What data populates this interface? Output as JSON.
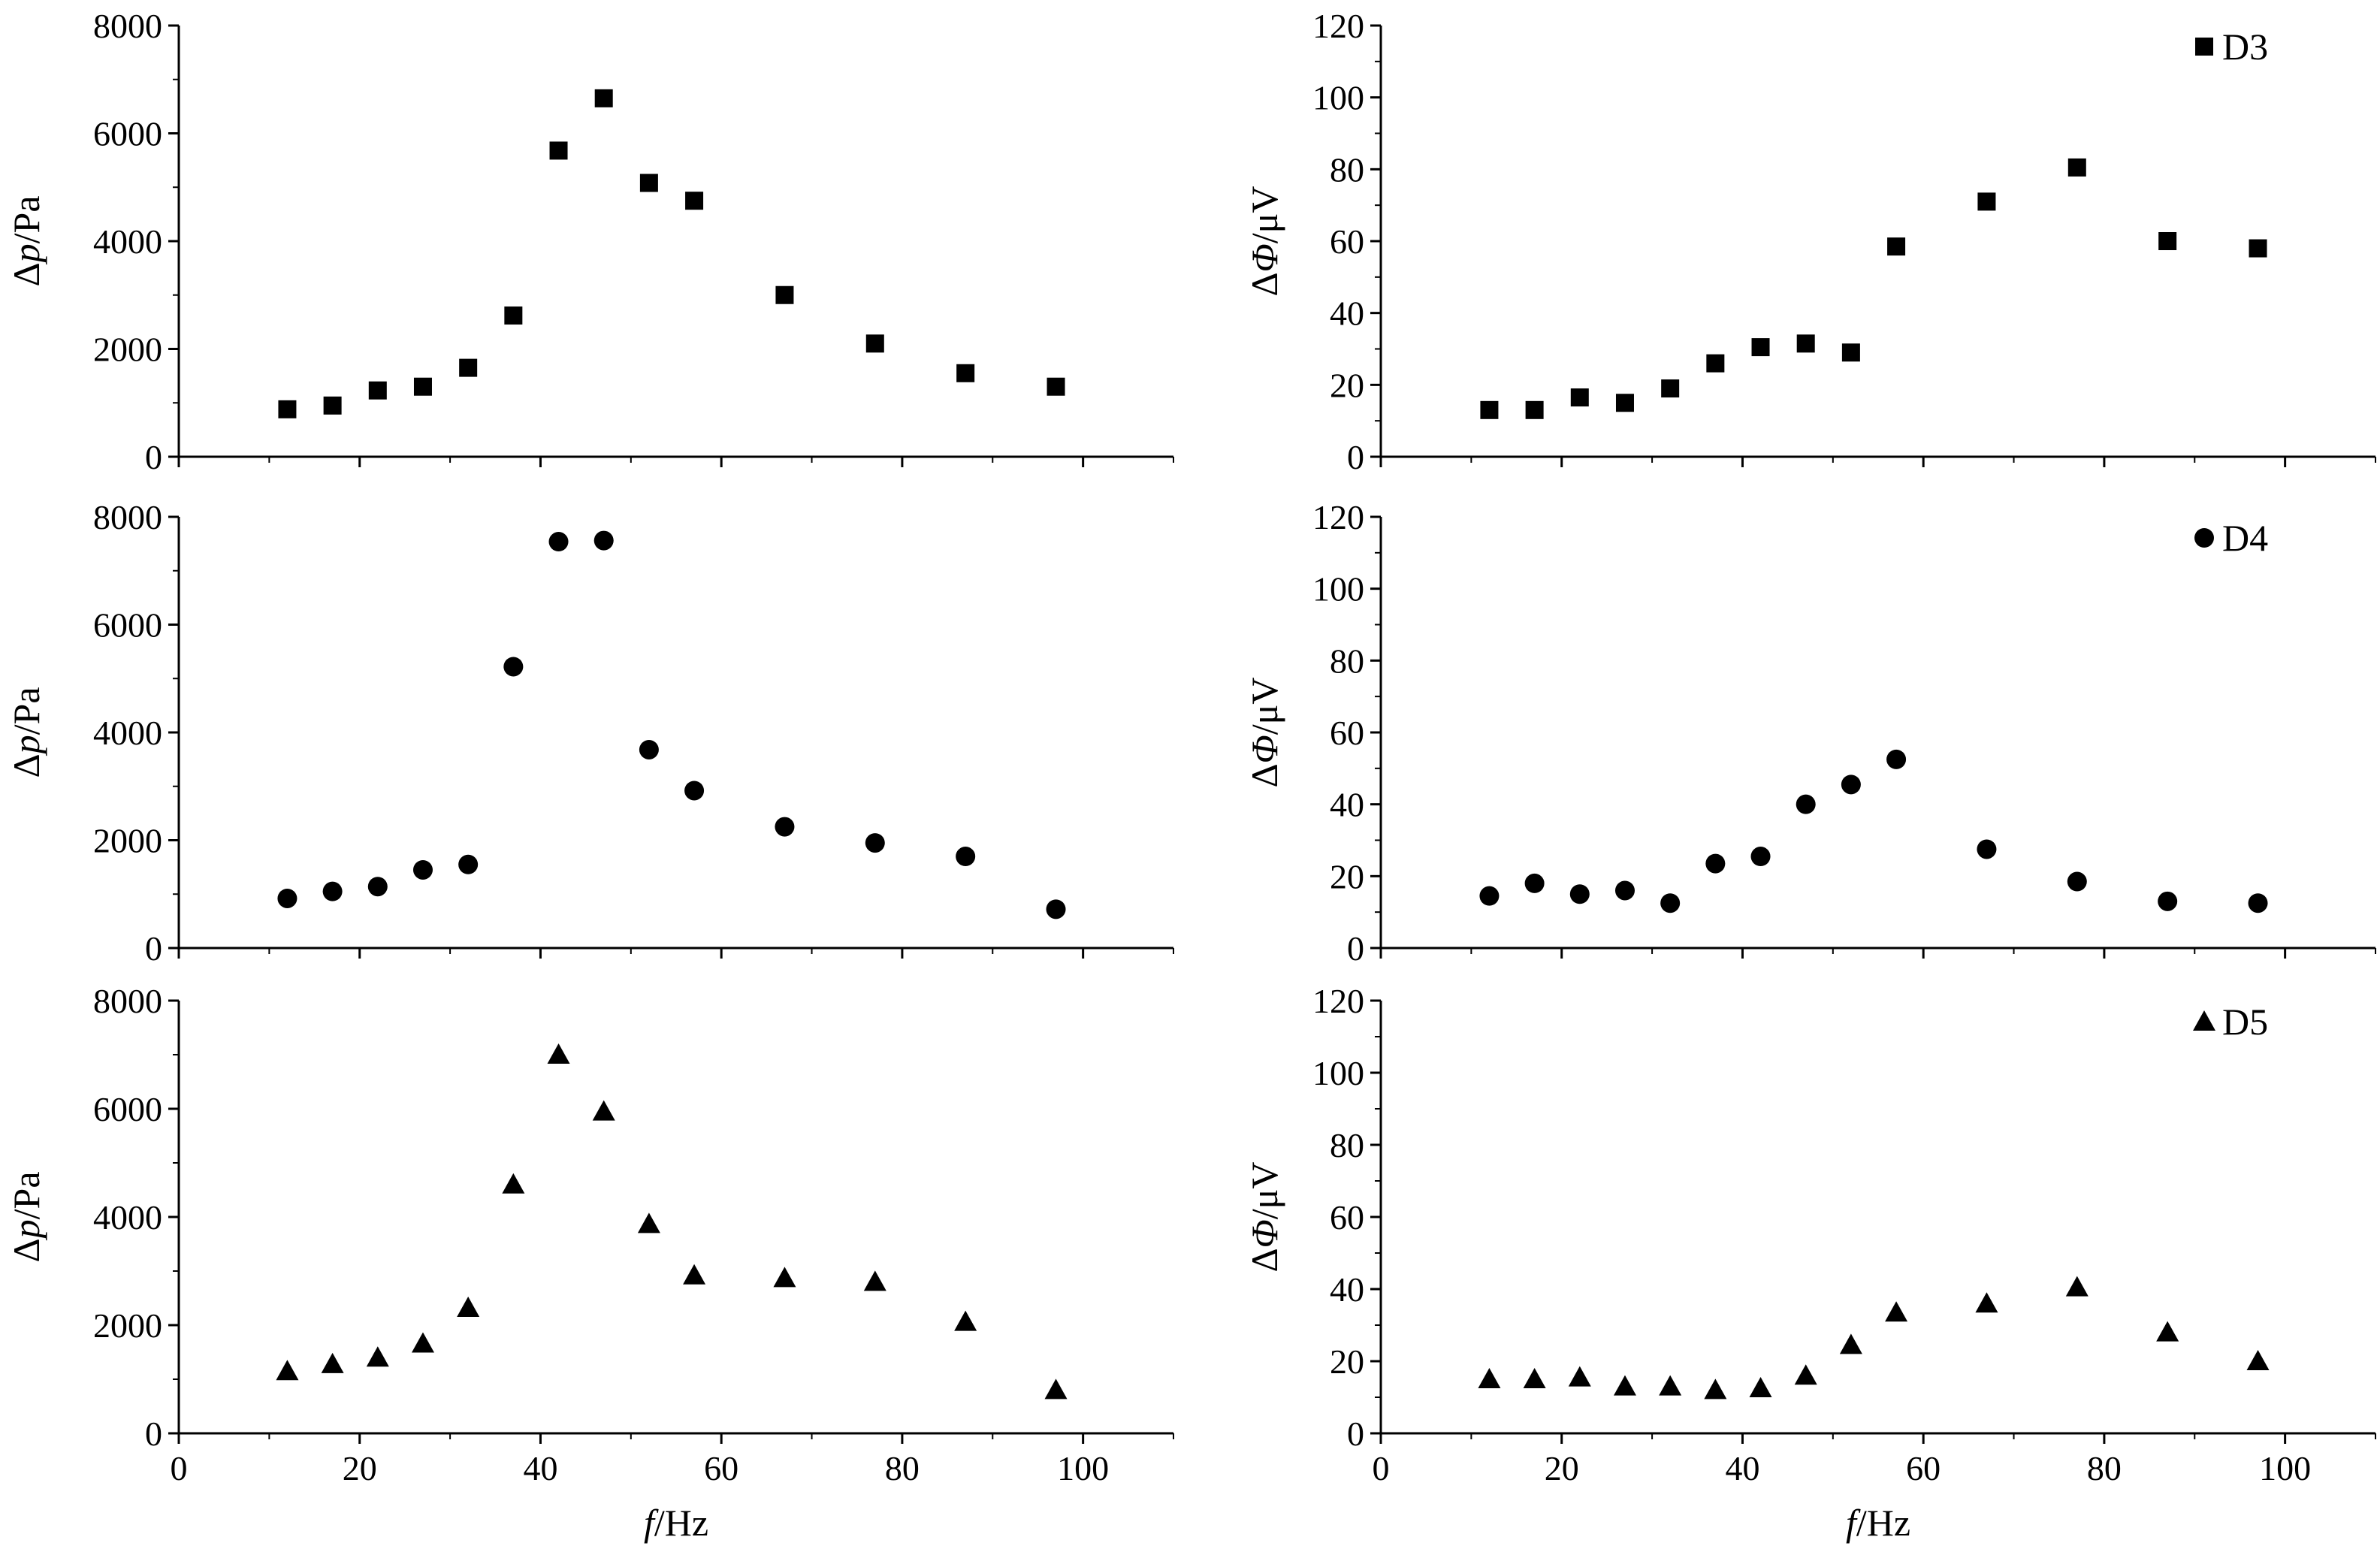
{
  "figure": {
    "xlabel_italic": "f",
    "xlabel_unit": "/Hz",
    "left_ylabel_prefix": "Δ",
    "left_ylabel_italic": "p",
    "left_ylabel_unit": "/Pa",
    "right_ylabel_prefix": "Δ",
    "right_ylabel_italic": "Φ",
    "right_ylabel_unit": "/μV"
  },
  "chart_data": [
    {
      "id": "pressure-D3",
      "type": "scatter",
      "marker": "square",
      "xlabel": "f/Hz",
      "ylabel": "Δp/Pa",
      "xlim": [
        0,
        110
      ],
      "ylim": [
        0,
        8000
      ],
      "xticks": [
        0,
        20,
        40,
        60,
        80,
        100
      ],
      "yticks": [
        0,
        2000,
        4000,
        6000,
        8000
      ],
      "x": [
        12,
        17,
        22,
        27,
        32,
        37,
        42,
        47,
        52,
        57,
        67,
        77,
        87,
        97
      ],
      "y": [
        880,
        950,
        1230,
        1300,
        1650,
        2620,
        5680,
        6650,
        5080,
        4750,
        3000,
        2100,
        1550,
        1300
      ]
    },
    {
      "id": "voltage-D3",
      "type": "scatter",
      "marker": "square",
      "legend": "D3",
      "xlabel": "f/Hz",
      "ylabel": "ΔΦ/μV",
      "xlim": [
        0,
        110
      ],
      "ylim": [
        0,
        120
      ],
      "xticks": [
        0,
        20,
        40,
        60,
        80,
        100
      ],
      "yticks": [
        0,
        20,
        40,
        60,
        80,
        100,
        120
      ],
      "x": [
        12,
        17,
        22,
        27,
        32,
        37,
        42,
        47,
        52,
        57,
        67,
        77,
        87,
        97
      ],
      "y": [
        13,
        13,
        16.5,
        15,
        19,
        26,
        30.5,
        31.5,
        29,
        58.5,
        71,
        80.5,
        60,
        58
      ]
    },
    {
      "id": "pressure-D4",
      "type": "scatter",
      "marker": "circle",
      "xlabel": "f/Hz",
      "ylabel": "Δp/Pa",
      "xlim": [
        0,
        110
      ],
      "ylim": [
        0,
        8000
      ],
      "xticks": [
        0,
        20,
        40,
        60,
        80,
        100
      ],
      "yticks": [
        0,
        2000,
        4000,
        6000,
        8000
      ],
      "x": [
        12,
        17,
        22,
        27,
        32,
        37,
        42,
        47,
        52,
        57,
        67,
        77,
        87,
        97
      ],
      "y": [
        920,
        1050,
        1140,
        1450,
        1550,
        5220,
        7540,
        7560,
        3680,
        2920,
        2250,
        1950,
        1700,
        720
      ]
    },
    {
      "id": "voltage-D4",
      "type": "scatter",
      "marker": "circle",
      "legend": "D4",
      "xlabel": "f/Hz",
      "ylabel": "ΔΦ/μV",
      "xlim": [
        0,
        110
      ],
      "ylim": [
        0,
        120
      ],
      "xticks": [
        0,
        20,
        40,
        60,
        80,
        100
      ],
      "yticks": [
        0,
        20,
        40,
        60,
        80,
        100,
        120
      ],
      "x": [
        12,
        17,
        22,
        27,
        32,
        37,
        42,
        47,
        52,
        57,
        67,
        77,
        87,
        97
      ],
      "y": [
        14.5,
        18,
        15,
        16,
        12.5,
        23.5,
        25.5,
        40,
        45.5,
        52.5,
        27.5,
        18.5,
        13,
        12.5
      ]
    },
    {
      "id": "pressure-D5",
      "type": "scatter",
      "marker": "triangle",
      "xlabel": "f/Hz",
      "ylabel": "Δp/Pa",
      "xlim": [
        0,
        110
      ],
      "ylim": [
        0,
        8000
      ],
      "xticks": [
        0,
        20,
        40,
        60,
        80,
        100
      ],
      "yticks": [
        0,
        2000,
        4000,
        6000,
        8000
      ],
      "x": [
        12,
        17,
        22,
        27,
        32,
        37,
        42,
        47,
        52,
        57,
        67,
        77,
        87,
        97
      ],
      "y": [
        1150,
        1280,
        1400,
        1660,
        2320,
        4600,
        7000,
        5950,
        3870,
        2920,
        2870,
        2800,
        2060,
        800
      ]
    },
    {
      "id": "voltage-D5",
      "type": "scatter",
      "marker": "triangle",
      "legend": "D5",
      "xlabel": "f/Hz",
      "ylabel": "ΔΦ/μV",
      "xlim": [
        0,
        110
      ],
      "ylim": [
        0,
        120
      ],
      "xticks": [
        0,
        20,
        40,
        60,
        80,
        100
      ],
      "yticks": [
        0,
        20,
        40,
        60,
        80,
        100,
        120
      ],
      "x": [
        12,
        17,
        22,
        27,
        32,
        37,
        42,
        47,
        52,
        57,
        67,
        77,
        87,
        97
      ],
      "y": [
        15,
        15,
        15.5,
        13,
        13,
        12,
        12.5,
        16,
        24.5,
        33.5,
        36,
        40.5,
        28,
        20
      ]
    }
  ]
}
